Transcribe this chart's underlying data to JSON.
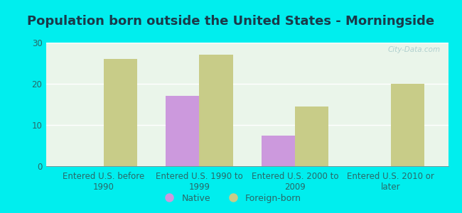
{
  "title": "Population born outside the United States - Morningside",
  "categories": [
    "Entered U.S. before\n1990",
    "Entered U.S. 1990 to\n1999",
    "Entered U.S. 2000 to\n2009",
    "Entered U.S. 2010 or\nlater"
  ],
  "native_values": [
    0,
    17,
    7.5,
    0
  ],
  "foreign_values": [
    26,
    27,
    14.5,
    20
  ],
  "native_color": "#cc99dd",
  "foreign_color": "#c8cc88",
  "ylim": [
    0,
    30
  ],
  "yticks": [
    0,
    10,
    20,
    30
  ],
  "bar_width": 0.35,
  "background_outer": "#00eeee",
  "background_inner": "#eaf5ea",
  "title_fontsize": 13,
  "tick_label_fontsize": 8.5,
  "legend_fontsize": 9,
  "watermark_text": "City-Data.com",
  "tick_color": "#2a6868",
  "grid_color": "#ffffff",
  "title_color": "#1a3a4a"
}
